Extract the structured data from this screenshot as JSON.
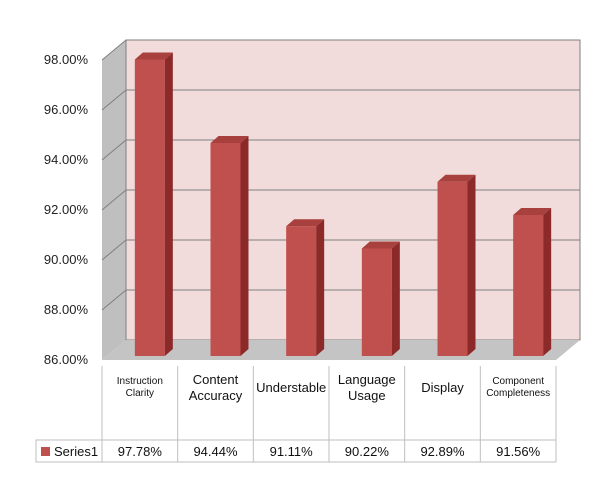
{
  "chart_data": {
    "type": "bar",
    "categories": [
      [
        "Instruction",
        "Clarity"
      ],
      [
        "Content",
        "Accuracy"
      ],
      [
        "Understable"
      ],
      [
        "Language",
        "Usage"
      ],
      [
        "Display"
      ],
      [
        "Component",
        "Completeness"
      ]
    ],
    "series": [
      {
        "name": "Series1",
        "values": [
          97.78,
          94.44,
          91.11,
          90.22,
          92.89,
          91.56
        ],
        "labels": [
          "97.78%",
          "94.44%",
          "91.11%",
          "90.22%",
          "92.89%",
          "91.56%"
        ]
      }
    ],
    "y_ticks": [
      "86.00%",
      "88.00%",
      "90.00%",
      "92.00%",
      "94.00%",
      "96.00%",
      "98.00%"
    ],
    "ylim": [
      86,
      98
    ],
    "grid": true,
    "data_table": true,
    "colors": {
      "bar_front": "#c0504d",
      "bar_side": "#8b2a28",
      "bar_top": "#a8403d",
      "back_wall": "#f2dcdb",
      "side_wall": "#bfbfbf",
      "floor": "#c4c4c4",
      "grid": "#7f7f7f"
    }
  }
}
